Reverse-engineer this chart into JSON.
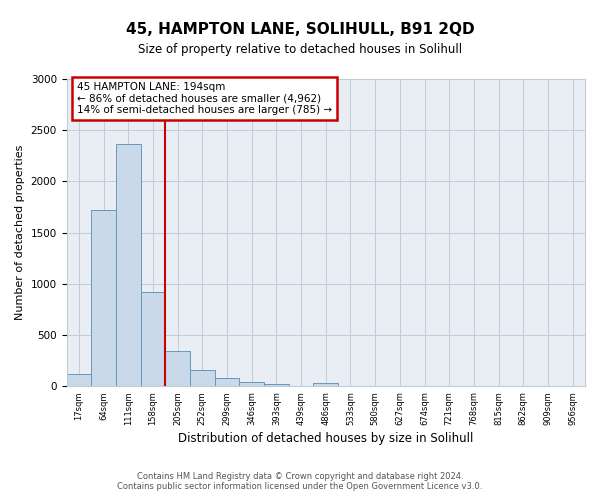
{
  "title": "45, HAMPTON LANE, SOLIHULL, B91 2QD",
  "subtitle": "Size of property relative to detached houses in Solihull",
  "xlabel": "Distribution of detached houses by size in Solihull",
  "ylabel": "Number of detached properties",
  "bin_labels": [
    "17sqm",
    "64sqm",
    "111sqm",
    "158sqm",
    "205sqm",
    "252sqm",
    "299sqm",
    "346sqm",
    "393sqm",
    "439sqm",
    "486sqm",
    "533sqm",
    "580sqm",
    "627sqm",
    "674sqm",
    "721sqm",
    "768sqm",
    "815sqm",
    "862sqm",
    "909sqm",
    "956sqm"
  ],
  "bar_heights": [
    120,
    1720,
    2370,
    920,
    340,
    155,
    80,
    40,
    25,
    0,
    30,
    0,
    0,
    0,
    0,
    0,
    0,
    0,
    0,
    0,
    0
  ],
  "bar_color": "#c9d9ea",
  "bar_edge_color": "#6699bb",
  "vline_x": 4,
  "vline_color": "#cc0000",
  "annotation_line1": "45 HAMPTON LANE: 194sqm",
  "annotation_line2": "← 86% of detached houses are smaller (4,962)",
  "annotation_line3": "14% of semi-detached houses are larger (785) →",
  "annotation_box_color": "white",
  "annotation_box_edge_color": "#cc0000",
  "ylim": [
    0,
    3000
  ],
  "yticks": [
    0,
    500,
    1000,
    1500,
    2000,
    2500,
    3000
  ],
  "footer_line1": "Contains HM Land Registry data © Crown copyright and database right 2024.",
  "footer_line2": "Contains public sector information licensed under the Open Government Licence v3.0.",
  "bg_color": "#ffffff",
  "plot_bg_color": "#e8eef4",
  "grid_color": "#c0ccd8"
}
